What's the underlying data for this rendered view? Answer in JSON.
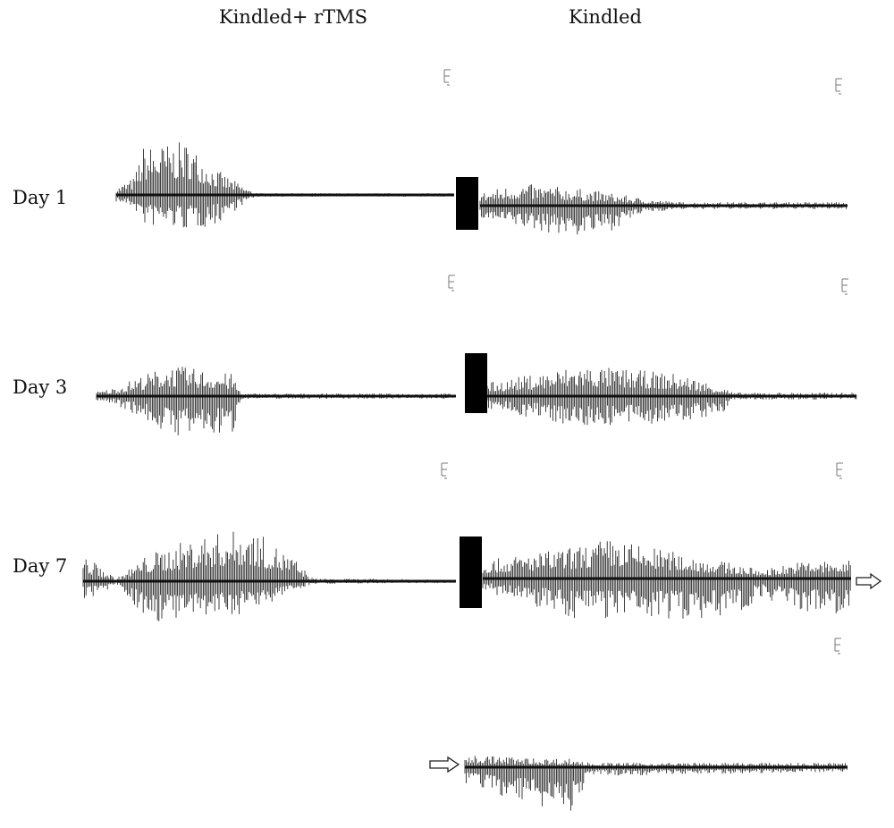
{
  "header": {
    "columns": [
      "Kindled+ rTMS",
      "Kindled"
    ]
  },
  "rows": [
    {
      "label": "Day 1"
    },
    {
      "label": "Day 3"
    },
    {
      "label": "Day 7"
    }
  ]
}
